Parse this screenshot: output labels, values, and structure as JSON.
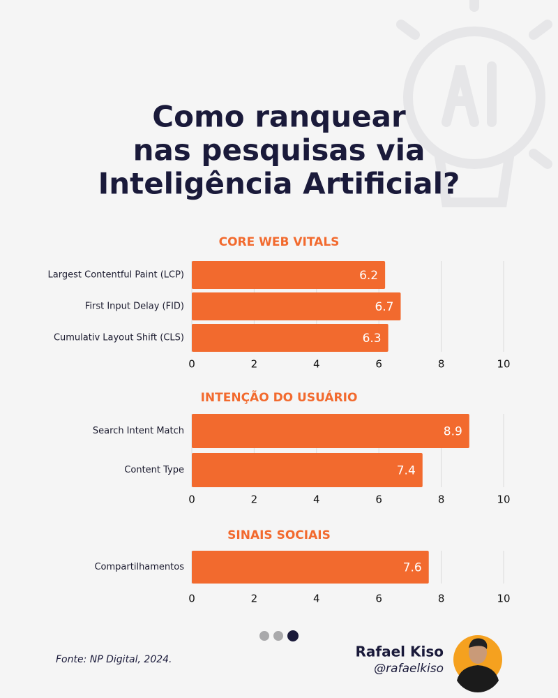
{
  "title_lines": [
    "Como ranquear",
    "nas pesquisas via",
    "Inteligência Artificial?"
  ],
  "chart_data": [
    {
      "type": "bar",
      "orientation": "horizontal",
      "title": "CORE WEB VITALS",
      "categories": [
        "Largest Contentful Paint (LCP)",
        "First Input Delay (FID)",
        "Cumulativ Layout Shift (CLS)"
      ],
      "values": [
        6.2,
        6.7,
        6.3
      ],
      "color": "#f26a2e",
      "xlim": [
        0,
        10
      ],
      "xticks": [
        0,
        2,
        4,
        6,
        8,
        10
      ],
      "grid": true
    },
    {
      "type": "bar",
      "orientation": "horizontal",
      "title": "INTENÇÃO DO USUÁRIO",
      "categories": [
        "Search Intent Match",
        "Content Type"
      ],
      "values": [
        8.9,
        7.4
      ],
      "color": "#f26a2e",
      "xlim": [
        0,
        10
      ],
      "xticks": [
        0,
        2,
        4,
        6,
        8,
        10
      ],
      "grid": true
    },
    {
      "type": "bar",
      "orientation": "horizontal",
      "title": "SINAIS SOCIAIS",
      "categories": [
        "Compartilhamentos"
      ],
      "values": [
        7.6
      ],
      "color": "#f26a2e",
      "xlim": [
        0,
        10
      ],
      "xticks": [
        0,
        2,
        4,
        6,
        8,
        10
      ],
      "grid": true
    }
  ],
  "source": "Fonte: NP Digital, 2024.",
  "author": {
    "name": "Rafael Kiso",
    "handle": "@rafaelkiso"
  }
}
